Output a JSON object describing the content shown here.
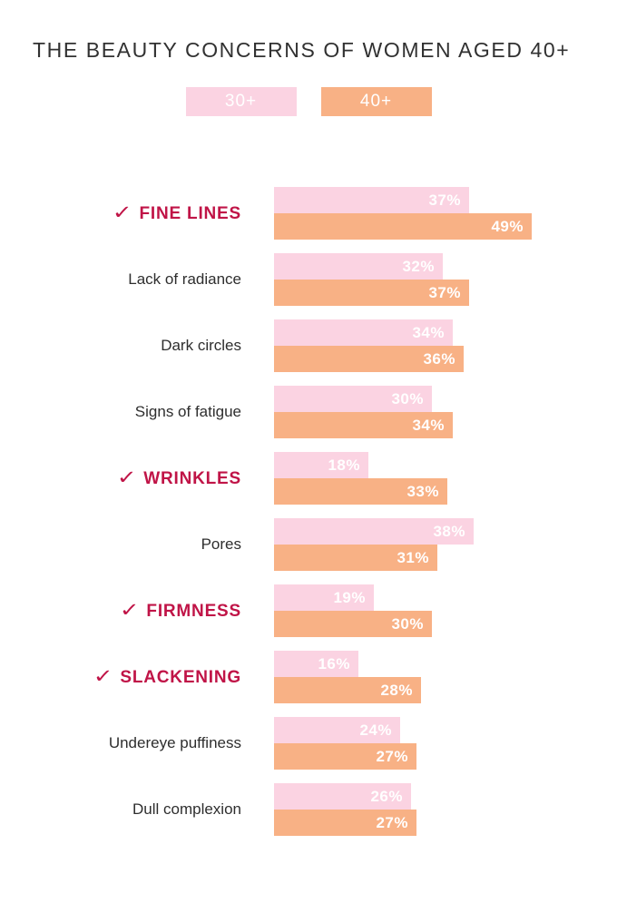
{
  "title": "THE BEAUTY CONCERNS OF WOMEN AGED 40+",
  "legend": {
    "items": [
      {
        "label": "30+",
        "color": "#fbd3e2"
      },
      {
        "label": "40+",
        "color": "#f8b185"
      }
    ]
  },
  "icons": {
    "check": "✓"
  },
  "colors": {
    "pink_30plus": "#fbd3e2",
    "orange_40plus": "#f8b185",
    "highlight_crimson": "#c01447",
    "title_text": "#313131",
    "bar_value_text": "#ffffff"
  },
  "chart_data": {
    "type": "bar",
    "orientation": "horizontal",
    "title": "THE BEAUTY CONCERNS OF WOMEN AGED 40+",
    "unit": "%",
    "xlim": [
      0,
      50
    ],
    "grid": false,
    "legend_position": "top-center",
    "categories": [
      "FINE LINES",
      "Lack of radiance",
      "Dark circles",
      "Signs of fatigue",
      "WRINKLES",
      "Pores",
      "FIRMNESS",
      "SLACKENING",
      "Undereye puffiness",
      "Dull complexion"
    ],
    "highlighted_categories": [
      "FINE LINES",
      "WRINKLES",
      "FIRMNESS",
      "SLACKENING"
    ],
    "series": [
      {
        "name": "30+",
        "color": "#fbd3e2",
        "values": [
          37,
          32,
          34,
          30,
          18,
          38,
          19,
          16,
          24,
          26
        ]
      },
      {
        "name": "40+",
        "color": "#f8b185",
        "values": [
          49,
          37,
          36,
          34,
          33,
          31,
          30,
          28,
          27,
          27
        ]
      }
    ]
  }
}
